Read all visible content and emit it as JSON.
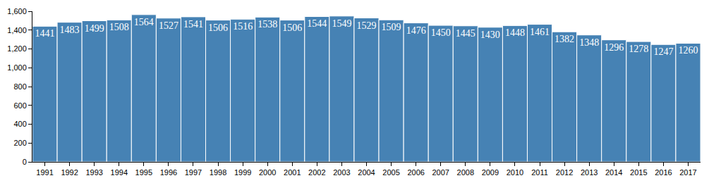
{
  "chart_data": {
    "type": "bar",
    "categories": [
      "1991",
      "1992",
      "1993",
      "1994",
      "1995",
      "1996",
      "1997",
      "1998",
      "1999",
      "2000",
      "2001",
      "2002",
      "2003",
      "2004",
      "2005",
      "2006",
      "2007",
      "2008",
      "2009",
      "2010",
      "2011",
      "2012",
      "2013",
      "2014",
      "2015",
      "2016",
      "2017"
    ],
    "values": [
      1441,
      1483,
      1499,
      1508,
      1564,
      1527,
      1541,
      1506,
      1516,
      1538,
      1506,
      1544,
      1549,
      1529,
      1509,
      1476,
      1450,
      1445,
      1430,
      1448,
      1461,
      1382,
      1348,
      1296,
      1278,
      1247,
      1260
    ],
    "color": "#4682b4",
    "ylim": [
      0,
      1600
    ],
    "yticks": [
      0,
      200,
      400,
      600,
      800,
      {
        "value": 1000,
        "label": "1,000"
      },
      {
        "value": 1200,
        "label": "1,200"
      },
      {
        "value": 1400,
        "label": "1,400"
      },
      {
        "value": 1600,
        "label": "1,600"
      }
    ],
    "grid": false,
    "data_labels": true
  }
}
